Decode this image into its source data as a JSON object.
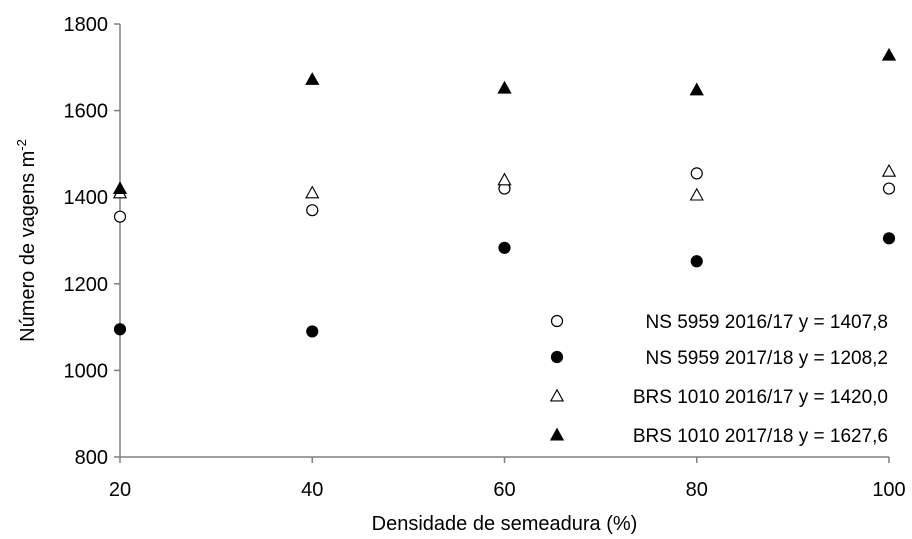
{
  "chart_data": {
    "type": "scatter",
    "xlabel": "Densidade de semeadura (%)",
    "ylabel_main": "Número de vagens  m",
    "ylabel_sup": "-2",
    "x": [
      20,
      40,
      60,
      80,
      100
    ],
    "xlim": [
      20,
      100
    ],
    "ylim": [
      800,
      1800
    ],
    "xticks": [
      "20",
      "40",
      "60",
      "80",
      "100"
    ],
    "yticks": [
      "800",
      "1000",
      "1200",
      "1400",
      "1600",
      "1800"
    ],
    "grid": false,
    "legend_position": "bottom-right",
    "series": [
      {
        "name": "NS 5959 2016/17",
        "equation": "y = 1407,8",
        "marker": "circle-open",
        "color": "#000000",
        "values": [
          1355,
          1370,
          1420,
          1455,
          1420
        ]
      },
      {
        "name": "NS 5959 2017/18",
        "equation": "y = 1208,2",
        "marker": "circle-filled",
        "color": "#000000",
        "values": [
          1095,
          1090,
          1283,
          1252,
          1305
        ]
      },
      {
        "name": "BRS 1010 2016/17",
        "equation": "y = 1420,0",
        "marker": "triangle-open",
        "color": "#000000",
        "values": [
          1410,
          1410,
          1440,
          1405,
          1460
        ]
      },
      {
        "name": "BRS 1010 2017/18",
        "equation": "y = 1627,6",
        "marker": "triangle-filled",
        "color": "#000000",
        "values": [
          1420,
          1672,
          1652,
          1648,
          1728
        ]
      }
    ]
  }
}
